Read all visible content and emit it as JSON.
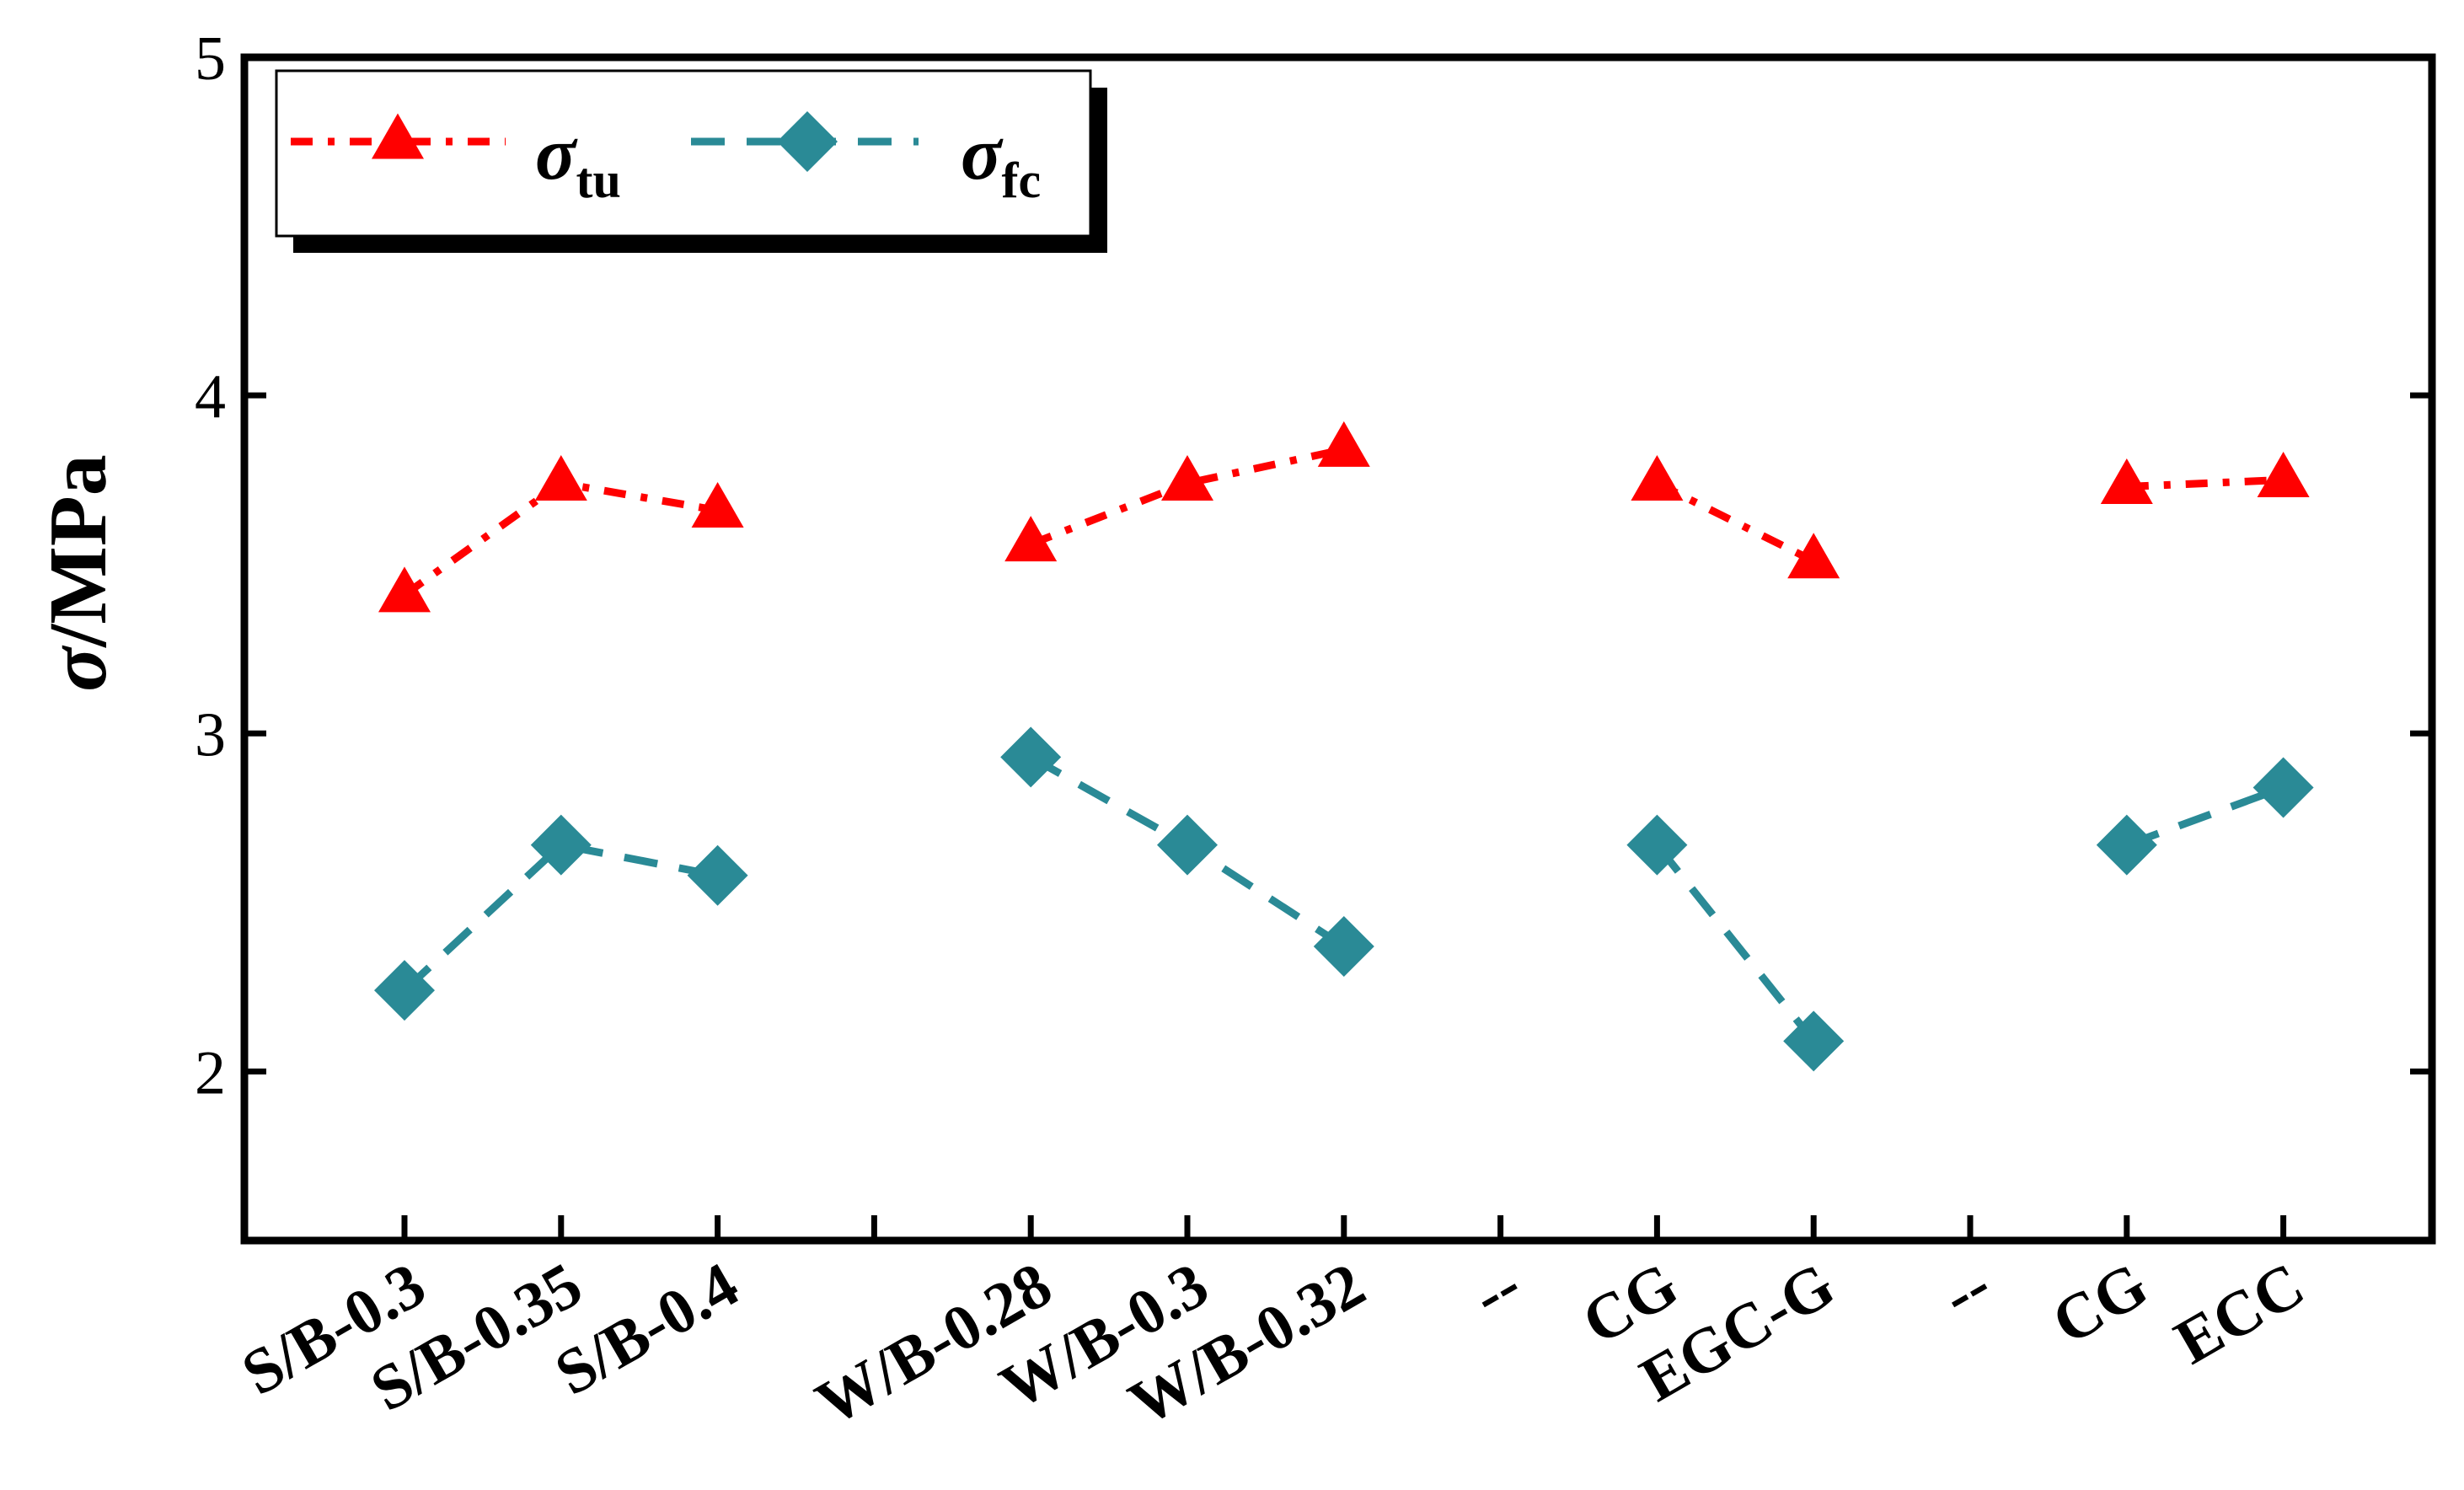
{
  "chart_data": {
    "type": "line",
    "title": "",
    "xlabel": "",
    "ylabel": {
      "symbol": "σ",
      "unit": "/MPa"
    },
    "ylim": [
      1.5,
      5
    ],
    "yticks": [
      2,
      3,
      4,
      5
    ],
    "categories": [
      "S/B-0.3",
      "S/B-0.35",
      "S/B-0.4",
      "",
      "W/B-0.28",
      "W/B-0.3",
      "W/B-0.32",
      "--",
      "CG",
      "EGC-G",
      "--",
      "CG",
      "ECC"
    ],
    "groups": [
      [
        0,
        1,
        2
      ],
      [
        4,
        5,
        6
      ],
      [
        8,
        9
      ],
      [
        11,
        12
      ]
    ],
    "legend_position": "top-left",
    "series": [
      {
        "name": "σtu",
        "symbol": "σ",
        "subscript": "tu",
        "color": "#ff0000",
        "marker": "triangle",
        "linestyle": "dash-dot",
        "values": [
          3.41,
          3.74,
          3.66,
          null,
          3.56,
          3.74,
          3.84,
          null,
          3.74,
          3.51,
          null,
          3.73,
          3.75
        ]
      },
      {
        "name": "σfc",
        "symbol": "σ",
        "subscript": "fc",
        "color": "#2a8a96",
        "marker": "diamond",
        "linestyle": "dashed",
        "values": [
          2.24,
          2.67,
          2.58,
          null,
          2.93,
          2.67,
          2.37,
          null,
          2.67,
          2.09,
          null,
          2.67,
          2.84
        ]
      }
    ]
  }
}
